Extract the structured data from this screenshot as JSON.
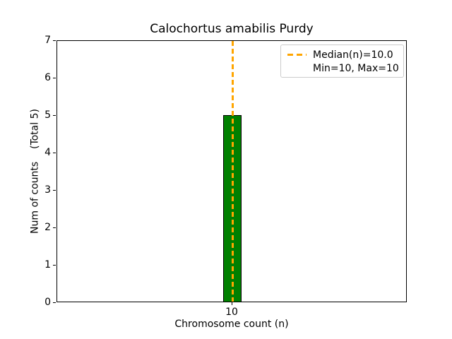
{
  "chart_data": {
    "type": "bar",
    "title": "Calochortus amabilis Purdy",
    "xlabel": "Chromosome count (n)",
    "ylabel": "Num of counts    (Total 5)",
    "categories": [
      "10"
    ],
    "values": [
      5
    ],
    "total_counts": 5,
    "ylim": [
      0,
      7
    ],
    "yticks": [
      0,
      1,
      2,
      3,
      4,
      5,
      6,
      7
    ],
    "xticks": [
      "10"
    ],
    "grid": false,
    "bar_color": "#008000",
    "bar_edge_color": "#000000",
    "median_line": {
      "x": 10,
      "value_label": "Median(n)=10.0",
      "color": "#FFA500",
      "style": "dashed"
    },
    "legend": {
      "position": "upper right",
      "entries": [
        "Median(n)=10.0",
        "Min=10, Max=10"
      ]
    }
  }
}
